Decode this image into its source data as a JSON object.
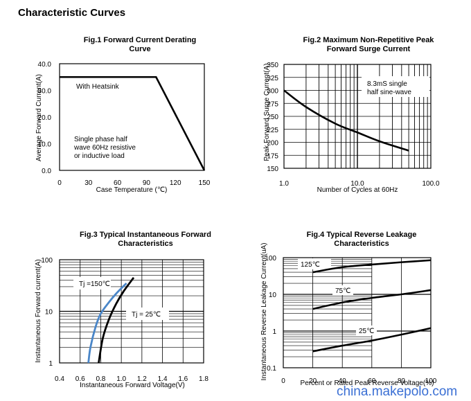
{
  "page_title": "Characteristic Curves",
  "watermark": "china.makepolo.com",
  "chart_data": [
    {
      "type": "line",
      "title": "Fig.1 Forward Current Derating Curve",
      "xlabel": "Case Temperature (℃)",
      "ylabel": "Average Forward Current(A)",
      "xlim": [
        0,
        150
      ],
      "ylim": [
        0,
        40
      ],
      "x_ticks": [
        "0",
        "30",
        "60",
        "90",
        "120",
        "150"
      ],
      "y_ticks": [
        "0.0",
        "10.0",
        "20.0",
        "30.0",
        "40.0"
      ],
      "series": [
        {
          "x": [
            0,
            100,
            150
          ],
          "y": [
            35,
            35,
            0
          ]
        }
      ],
      "annotations": [
        "With Heatsink",
        "Single phase half",
        "wave 60Hz resistive",
        "or inductive load"
      ],
      "grid": false
    },
    {
      "type": "line",
      "title": "Fig.2 Maximum Non-Repetitive Peak Forward Surge Current",
      "xlabel": "Number of Cycles at 60Hz",
      "ylabel": "Peak Forward Surge Current(A)",
      "x_scale": "log",
      "xlim": [
        1,
        100
      ],
      "ylim": [
        150,
        350
      ],
      "x_ticks": [
        "1.0",
        "10.0",
        "100.0"
      ],
      "y_ticks": [
        "150",
        "175",
        "200",
        "225",
        "250",
        "275",
        "300",
        "325",
        "350"
      ],
      "series": [
        {
          "x": [
            1,
            2,
            5,
            10,
            20,
            50
          ],
          "y": [
            300,
            268,
            236,
            219,
            202,
            184
          ]
        }
      ],
      "annotations": [
        "8.3mS single",
        "half sine-wave"
      ],
      "grid": true
    },
    {
      "type": "line",
      "title": "Fig.3 Typical Instantaneous Forward Characteristics",
      "xlabel": "Instantaneous Forward Voltage(V)",
      "ylabel": "Instantaneous Forward current(A)",
      "y_scale": "log",
      "xlim": [
        0.4,
        1.8
      ],
      "ylim": [
        1,
        100
      ],
      "x_ticks": [
        "0.4",
        "0.6",
        "0.8",
        "1.0",
        "1.2",
        "1.4",
        "1.6",
        "1.8"
      ],
      "y_ticks": [
        "1",
        "10",
        "100"
      ],
      "series": [
        {
          "name": "Tj =150℃",
          "color": "#4a86c8",
          "x": [
            0.68,
            0.7,
            0.75,
            0.8,
            0.88,
            0.95,
            1.05
          ],
          "y": [
            1,
            2,
            5,
            9,
            15,
            22,
            35
          ]
        },
        {
          "name": "Tj = 25℃",
          "color": "#000000",
          "x": [
            0.78,
            0.82,
            0.88,
            0.95,
            1.02,
            1.12
          ],
          "y": [
            1,
            3,
            7,
            14,
            24,
            45
          ]
        }
      ],
      "grid": true
    },
    {
      "type": "line",
      "title": "Fig.4 Typical Reverse Leakage Characteristics",
      "xlabel": "Percent or Rated Peak Reverse Voltage(%)",
      "ylabel": "Instantaneous Reverse Leakage Current(uA)",
      "y_scale": "log",
      "xlim": [
        0,
        100
      ],
      "ylim": [
        0.1,
        100
      ],
      "x_ticks": [
        "0",
        "20",
        "40",
        "60",
        "80",
        "100"
      ],
      "y_ticks": [
        "0.1",
        "1",
        "10",
        "100"
      ],
      "series": [
        {
          "name": "125℃",
          "x": [
            20,
            40,
            60,
            80,
            100
          ],
          "y": [
            40,
            55,
            65,
            75,
            85
          ]
        },
        {
          "name": "75℃",
          "x": [
            20,
            40,
            60,
            80,
            100
          ],
          "y": [
            4,
            6,
            8,
            10,
            13
          ]
        },
        {
          "name": "25℃",
          "x": [
            20,
            40,
            60,
            80,
            100
          ],
          "y": [
            0.28,
            0.4,
            0.55,
            0.8,
            1.2
          ]
        }
      ],
      "grid": true
    }
  ]
}
